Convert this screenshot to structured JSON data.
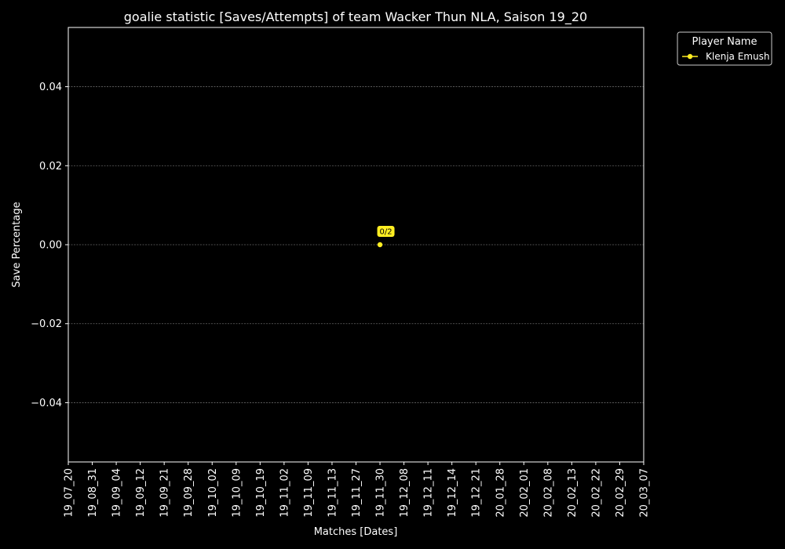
{
  "chart_data": {
    "type": "line",
    "title": "goalie statistic [Saves/Attempts] of team Wacker Thun NLA, Saison 19_20",
    "xlabel": "Matches [Dates]",
    "ylabel": "Save Percentage",
    "categories": [
      "19_07_20",
      "19_08_31",
      "19_09_04",
      "19_09_12",
      "19_09_21",
      "19_09_28",
      "19_10_02",
      "19_10_09",
      "19_10_19",
      "19_11_02",
      "19_11_09",
      "19_11_13",
      "19_11_27",
      "19_11_30",
      "19_12_08",
      "19_12_11",
      "19_12_14",
      "19_12_21",
      "20_01_28",
      "20_02_01",
      "20_02_08",
      "20_02_13",
      "20_02_22",
      "20_02_29",
      "20_03_07"
    ],
    "ylim": [
      -0.055,
      0.055
    ],
    "yticks": [
      -0.04,
      -0.02,
      0.0,
      0.02,
      0.04
    ],
    "ytick_labels": [
      "−0.04",
      "−0.02",
      "0.00",
      "0.02",
      "0.04"
    ],
    "grid": "horizontal dashed",
    "background": "#000000",
    "series": [
      {
        "name": "Klenja Emush",
        "color": "#ffee22",
        "points": [
          {
            "x": "19_11_30",
            "y": 0.0,
            "label": "0/2"
          }
        ]
      }
    ],
    "legend": {
      "title": "Player Name",
      "placement": "outside top-right"
    }
  }
}
